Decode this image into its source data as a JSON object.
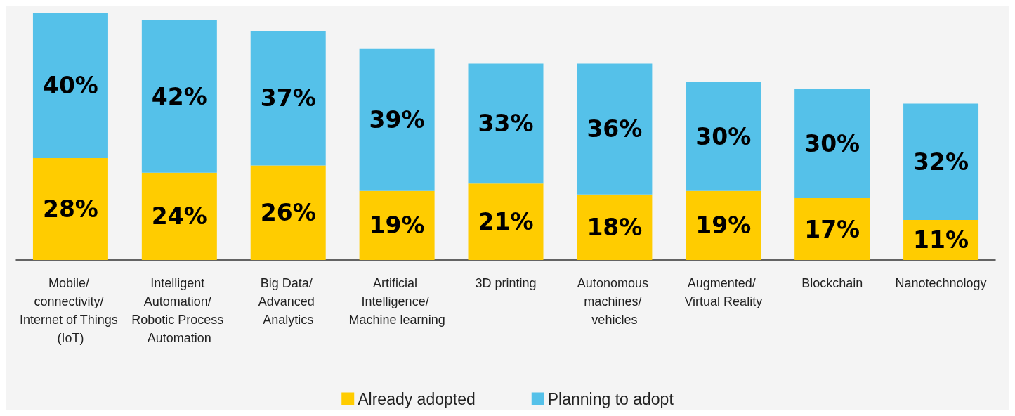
{
  "chart_data": {
    "type": "bar",
    "stacked": true,
    "legend": "bottom",
    "categories": [
      "Mobile/ connectivity/ Internet of Things (IoT)",
      "Intelligent Automation/ Robotic Process Automation",
      "Big Data/ Advanced Analytics",
      "Artificial Intelligence/ Machine learning",
      "3D printing",
      "Autonomous machines/ vehicles",
      "Augmented/ Virtual Reality",
      "Blockchain",
      "Nanotechnology"
    ],
    "series": [
      {
        "name": "Already adopted",
        "color": "#ffcc00",
        "values": [
          28,
          24,
          26,
          19,
          21,
          18,
          19,
          17,
          11
        ],
        "value_labels": [
          "28%",
          "24%",
          "26%",
          "19%",
          "21%",
          "18%",
          "19%",
          "17%",
          "11%"
        ]
      },
      {
        "name": "Planning to adopt",
        "color": "#55c1e9",
        "values": [
          40,
          42,
          37,
          39,
          33,
          36,
          30,
          30,
          32
        ],
        "value_labels": [
          "40%",
          "42%",
          "37%",
          "39%",
          "33%",
          "36%",
          "30%",
          "30%",
          "32%"
        ]
      }
    ]
  }
}
